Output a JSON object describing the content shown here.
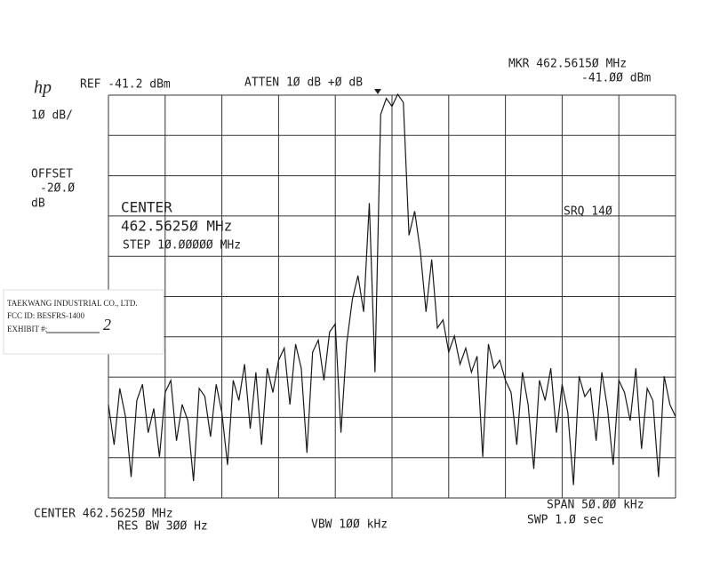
{
  "chart_data": {
    "type": "line",
    "color": "#1a1a1a",
    "annotations": [
      "REF -41.2 dBm",
      "ATTEN 1Ø dB +Ø dB",
      "MKR 462.5615Ø MHz",
      "-41.ØØ dBm",
      "1Ø dB/",
      "OFFSET",
      "-2Ø.Ø",
      "dB",
      "CENTER",
      "462.5625Ø MHz",
      "STEP 1Ø.ØØØØØ MHz",
      "SRQ 14Ø",
      "CENTER 462.5625Ø MHz",
      "RES BW 3ØØ Hz",
      "VBW 1ØØ kHz",
      "SPAN 5Ø.ØØ kHz",
      "SWP 1.Ø  sec"
    ],
    "xlim": [
      462.5375,
      462.5875
    ],
    "ylim": [
      -141.2,
      -41.2
    ],
    "x": [
      462.5375,
      462.538,
      462.5385,
      462.539,
      462.5395,
      462.54,
      462.5405,
      462.541,
      462.5415,
      462.542,
      462.5425,
      462.543,
      462.5435,
      462.544,
      462.5445,
      462.545,
      462.5455,
      462.546,
      462.5465,
      462.547,
      462.5475,
      462.548,
      462.5485,
      462.549,
      462.5495,
      462.55,
      462.5505,
      462.551,
      462.5515,
      462.552,
      462.5525,
      462.553,
      462.5535,
      462.554,
      462.5545,
      462.555,
      462.5555,
      462.556,
      462.5565,
      462.557,
      462.5575,
      462.558,
      462.5585,
      462.559,
      462.5595,
      462.56,
      462.5605,
      462.561,
      462.5615,
      462.562,
      462.5625,
      462.563,
      462.5635,
      462.564,
      462.5645,
      462.565,
      462.5655,
      462.566,
      462.5665,
      462.567,
      462.5675,
      462.568,
      462.5685,
      462.569,
      462.5695,
      462.57,
      462.5705,
      462.571,
      462.5715,
      462.572,
      462.5725,
      462.573,
      462.5735,
      462.574,
      462.5745,
      462.575,
      462.5755,
      462.576,
      462.5765,
      462.577,
      462.5775,
      462.578,
      462.5785,
      462.579,
      462.5795,
      462.58,
      462.5805,
      462.581,
      462.5815,
      462.582,
      462.5825,
      462.583,
      462.5835,
      462.584,
      462.5845,
      462.585,
      462.5855,
      462.586,
      462.5865,
      462.587,
      462.5875
    ],
    "values": [
      -118,
      -128,
      -114,
      -121,
      -136,
      -117,
      -113,
      -125,
      -119,
      -131,
      -115,
      -112,
      -127,
      -118,
      -122,
      -137,
      -114,
      -116,
      -126,
      -113,
      -120,
      -133,
      -112,
      -117,
      -108,
      -124,
      -110,
      -128,
      -109,
      -115,
      -107,
      -104,
      -118,
      -103,
      -109,
      -130,
      -105,
      -102,
      -112,
      -100,
      -98,
      -125,
      -103,
      -92,
      -86,
      -95,
      -68,
      -110,
      -46,
      -42,
      -44,
      -41,
      -43,
      -76,
      -70,
      -80,
      -95,
      -82,
      -99,
      -97,
      -105,
      -101,
      -108,
      -104,
      -110,
      -106,
      -131,
      -103,
      -109,
      -107,
      -112,
      -115,
      -128,
      -110,
      -118,
      -134,
      -112,
      -117,
      -109,
      -125,
      -113,
      -120,
      -138,
      -111,
      -116,
      -114,
      -127,
      -110,
      -119,
      -133,
      -112,
      -115,
      -122,
      -109,
      -129,
      -114,
      -117,
      -136,
      -111,
      -118,
      -121
    ]
  },
  "logo": "hp",
  "stamp": {
    "company": "TAEKWANG INDUSTRIAL CO., LTD.",
    "fcc_id": "FCC ID:  BESFRS-1400",
    "exhibit": "EXHIBIT #:",
    "exhibit_number": "2"
  }
}
